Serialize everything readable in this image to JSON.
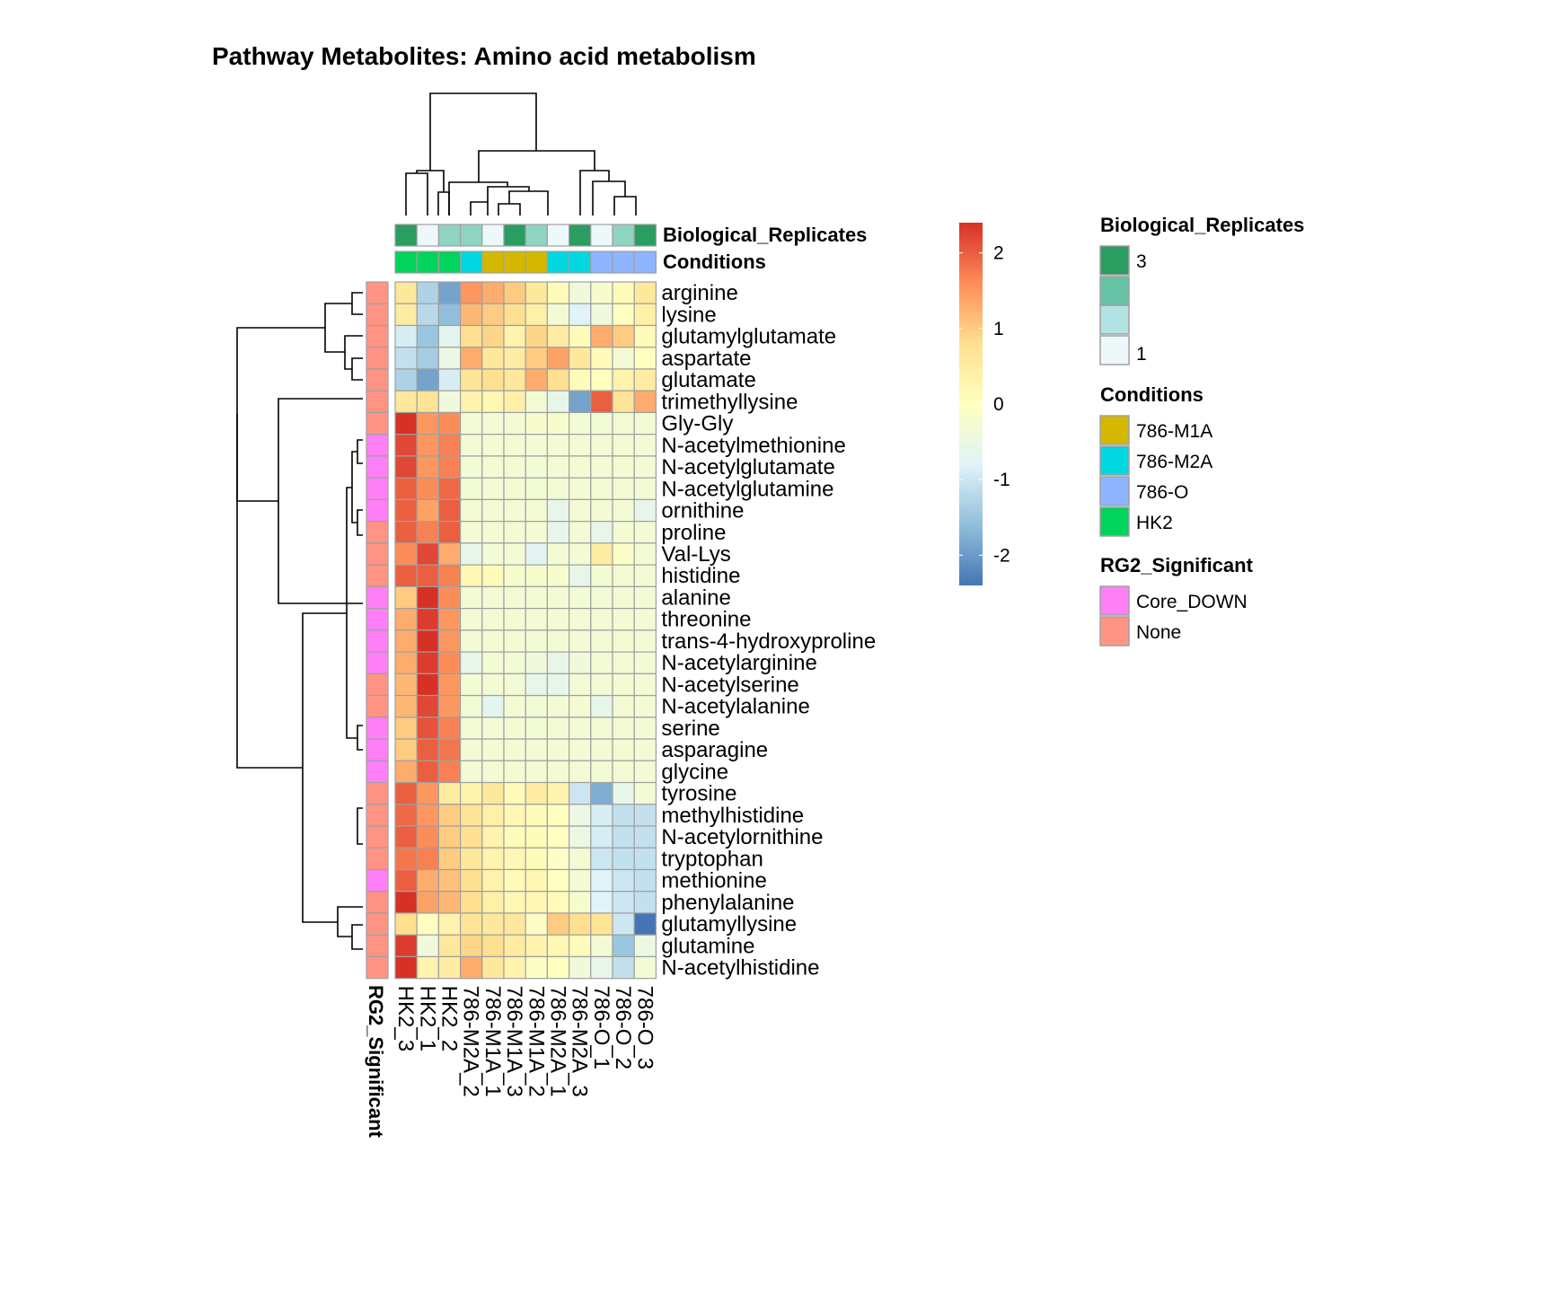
{
  "chart_data": {
    "type": "heatmap",
    "title": "Pathway  Metabolites:  Amino acid metabolism",
    "columns": [
      "HK2_3",
      "HK2_1",
      "HK2_2",
      "786-M2A_2",
      "786-M1A_1",
      "786-M1A_3",
      "786-M1A_2",
      "786-M2A_1",
      "786-M2A_3",
      "786-O_1",
      "786-O_2",
      "786-O_3"
    ],
    "rows": [
      "arginine",
      "lysine",
      "glutamylglutamate",
      "aspartate",
      "glutamate",
      "trimethyllysine",
      "Gly-Gly",
      "N-acetylmethionine",
      "N-acetylglutamate",
      "N-acetylglutamine",
      "ornithine",
      "proline",
      "Val-Lys",
      "histidine",
      "alanine",
      "threonine",
      "trans-4-hydroxyproline",
      "N-acetylarginine",
      "N-acetylserine",
      "N-acetylalanine",
      "serine",
      "asparagine",
      "glycine",
      "tyrosine",
      "methylhistidine",
      "N-acetylornithine",
      "tryptophan",
      "methionine",
      "phenylalanine",
      "glutamyllysine",
      "glutamine",
      "N-acetylhistidine"
    ],
    "values": [
      [
        0.6,
        -1.3,
        -1.9,
        1.5,
        1.3,
        1.0,
        0.6,
        0.1,
        -0.4,
        -0.2,
        0.1,
        0.6
      ],
      [
        0.5,
        -1.2,
        -1.6,
        1.2,
        1.0,
        0.8,
        0.4,
        -0.3,
        -0.8,
        -0.4,
        0.0,
        0.4
      ],
      [
        -0.9,
        -1.5,
        -0.7,
        0.8,
        0.9,
        0.3,
        0.9,
        0.5,
        0.1,
        1.3,
        1.0,
        0.1
      ],
      [
        -1.1,
        -1.4,
        -0.5,
        1.3,
        0.6,
        0.5,
        1.0,
        1.4,
        0.6,
        0.1,
        -0.3,
        0.0
      ],
      [
        -1.3,
        -1.9,
        -0.9,
        0.7,
        0.8,
        0.6,
        1.3,
        0.8,
        0.1,
        0.0,
        0.3,
        0.5
      ],
      [
        0.6,
        0.7,
        -0.4,
        0.3,
        0.2,
        0.4,
        -0.3,
        -0.6,
        -1.9,
        2.0,
        0.7,
        1.3
      ],
      [
        2.4,
        1.5,
        1.6,
        -0.3,
        -0.3,
        -0.3,
        -0.2,
        -0.2,
        -0.3,
        -0.3,
        -0.3,
        -0.3
      ],
      [
        2.2,
        1.5,
        1.7,
        -0.3,
        -0.3,
        -0.3,
        -0.3,
        -0.3,
        -0.3,
        -0.3,
        -0.3,
        -0.3
      ],
      [
        2.2,
        1.5,
        1.7,
        -0.3,
        -0.3,
        -0.3,
        -0.3,
        -0.3,
        -0.3,
        -0.3,
        -0.3,
        -0.3
      ],
      [
        2.0,
        1.6,
        1.9,
        -0.3,
        -0.3,
        -0.3,
        -0.3,
        -0.3,
        -0.3,
        -0.3,
        -0.3,
        -0.3
      ],
      [
        2.0,
        1.4,
        2.0,
        -0.3,
        -0.3,
        -0.3,
        -0.3,
        -0.6,
        -0.3,
        -0.3,
        -0.3,
        -0.6
      ],
      [
        2.0,
        1.7,
        2.0,
        -0.3,
        -0.3,
        -0.3,
        -0.3,
        -0.6,
        -0.3,
        -0.6,
        -0.3,
        -0.3
      ],
      [
        1.6,
        2.2,
        1.3,
        -0.6,
        -0.3,
        -0.3,
        -0.7,
        -0.3,
        -0.3,
        0.5,
        -0.1,
        -0.3
      ],
      [
        2.0,
        2.0,
        1.7,
        0.2,
        0.1,
        -0.2,
        -0.2,
        -0.2,
        -0.6,
        -0.3,
        -0.3,
        -0.3
      ],
      [
        1.0,
        2.4,
        1.6,
        -0.3,
        -0.3,
        -0.3,
        -0.3,
        -0.3,
        -0.3,
        -0.3,
        -0.3,
        -0.3
      ],
      [
        1.3,
        2.3,
        1.5,
        -0.3,
        -0.3,
        -0.3,
        -0.3,
        -0.3,
        -0.3,
        -0.3,
        -0.3,
        -0.3
      ],
      [
        1.3,
        2.4,
        1.5,
        -0.3,
        -0.3,
        -0.3,
        -0.3,
        -0.3,
        -0.3,
        -0.3,
        -0.3,
        -0.3
      ],
      [
        1.3,
        2.3,
        1.6,
        -0.6,
        -0.3,
        -0.3,
        -0.4,
        -0.6,
        -0.4,
        -0.3,
        -0.3,
        -0.3
      ],
      [
        1.2,
        2.4,
        1.5,
        -0.3,
        -0.3,
        -0.3,
        -0.6,
        -0.6,
        -0.3,
        -0.3,
        -0.3,
        -0.3
      ],
      [
        1.2,
        2.2,
        1.5,
        -0.3,
        -0.7,
        -0.3,
        -0.3,
        -0.3,
        -0.3,
        -0.6,
        -0.3,
        -0.3
      ],
      [
        1.0,
        2.1,
        1.7,
        -0.3,
        -0.3,
        -0.3,
        -0.3,
        -0.3,
        -0.3,
        -0.3,
        -0.3,
        -0.3
      ],
      [
        1.0,
        2.0,
        1.8,
        -0.3,
        -0.3,
        -0.3,
        -0.3,
        -0.3,
        -0.3,
        -0.3,
        -0.3,
        -0.3
      ],
      [
        1.3,
        2.0,
        1.7,
        -0.3,
        -0.3,
        -0.3,
        -0.3,
        -0.3,
        -0.3,
        -0.3,
        -0.3,
        -0.3
      ],
      [
        2.0,
        1.5,
        0.5,
        0.3,
        0.6,
        0.1,
        0.5,
        0.3,
        -1.0,
        -1.8,
        -0.6,
        -0.3
      ],
      [
        1.9,
        1.5,
        1.0,
        0.7,
        0.4,
        0.2,
        0.1,
        0.0,
        -0.5,
        -0.9,
        -1.1,
        -1.1
      ],
      [
        2.0,
        1.6,
        1.0,
        0.8,
        0.3,
        0.1,
        0.1,
        0.0,
        -0.5,
        -0.9,
        -1.1,
        -1.1
      ],
      [
        1.8,
        1.7,
        1.0,
        0.6,
        0.3,
        0.2,
        0.1,
        -0.1,
        -0.3,
        -1.0,
        -1.1,
        -1.1
      ],
      [
        2.0,
        1.3,
        1.1,
        0.8,
        0.3,
        0.1,
        0.2,
        0.0,
        -0.3,
        -0.8,
        -1.0,
        -1.1
      ],
      [
        2.4,
        1.4,
        1.2,
        0.8,
        0.4,
        0.2,
        0.2,
        0.1,
        -0.2,
        -0.8,
        -1.0,
        -1.1
      ],
      [
        0.8,
        0.0,
        0.3,
        0.7,
        0.6,
        0.6,
        -0.1,
        1.0,
        0.8,
        0.7,
        -1.0,
        -2.6
      ],
      [
        2.3,
        -0.4,
        0.6,
        0.9,
        0.8,
        0.5,
        0.3,
        0.2,
        0.1,
        -0.3,
        -1.5,
        -0.5
      ],
      [
        2.4,
        0.3,
        0.5,
        1.3,
        0.6,
        0.3,
        -0.1,
        0.0,
        -0.4,
        -0.6,
        -1.1,
        -0.3
      ]
    ],
    "column_annotations": {
      "Biological_Replicates": [
        3,
        1,
        2,
        2,
        1,
        3,
        2,
        1,
        3,
        1,
        2,
        3
      ],
      "Conditions": [
        "HK2",
        "HK2",
        "HK2",
        "786-M2A",
        "786-M1A",
        "786-M1A",
        "786-M1A",
        "786-M2A",
        "786-M2A",
        "786-O",
        "786-O",
        "786-O"
      ]
    },
    "row_annotations": {
      "RG2_Significant": [
        "None",
        "None",
        "None",
        "None",
        "None",
        "None",
        "None",
        "Core_DOWN",
        "Core_DOWN",
        "Core_DOWN",
        "Core_DOWN",
        "None",
        "None",
        "None",
        "Core_DOWN",
        "Core_DOWN",
        "Core_DOWN",
        "Core_DOWN",
        "None",
        "None",
        "Core_DOWN",
        "Core_DOWN",
        "Core_DOWN",
        "None",
        "None",
        "None",
        "None",
        "Core_DOWN",
        "None",
        "None",
        "None",
        "None"
      ]
    },
    "annotation_labels": {
      "Biological_Replicates": "Biological_Replicates",
      "Conditions": "Conditions",
      "RG2_Significant": "RG2_Significant"
    },
    "colorbar": {
      "range": [
        -2.4,
        2.4
      ],
      "ticks": [
        2,
        1,
        0,
        -1,
        -2
      ],
      "tick_labels": [
        "2",
        "1",
        "0",
        "-1",
        "-2"
      ],
      "colors": [
        "#4575b4",
        "#91bfdb",
        "#e0f3f8",
        "#ffffbf",
        "#fee090",
        "#fc8d59",
        "#d73027"
      ]
    },
    "legends": [
      {
        "title": "Biological_Replicates",
        "items": [
          {
            "label": "3",
            "color": "#2a9d60"
          },
          {
            "label": "",
            "color": "#66c2a4"
          },
          {
            "label": "",
            "color": "#b2e2e2"
          },
          {
            "label": "1",
            "color": "#edf8fb"
          }
        ]
      },
      {
        "title": "Conditions",
        "items": [
          {
            "label": "786-M1A",
            "color": "#d4b800"
          },
          {
            "label": "786-M2A",
            "color": "#00d7e0"
          },
          {
            "label": "786-O",
            "color": "#8eb4ff"
          },
          {
            "label": "HK2",
            "color": "#00d45c"
          }
        ]
      },
      {
        "title": "RG2_Significant",
        "items": [
          {
            "label": "Core_DOWN",
            "color": "#ff7ff6"
          },
          {
            "label": "None",
            "color": "#ff9485"
          }
        ]
      }
    ],
    "replicate_colors": {
      "1": "#edf8fb",
      "2": "#8fd3c1",
      "3": "#2a9d60"
    },
    "condition_colors": {
      "786-M1A": "#d4b800",
      "786-M2A": "#00d7e0",
      "786-O": "#8eb4ff",
      "HK2": "#00d45c"
    },
    "significance_colors": {
      "Core_DOWN": "#ff7ff6",
      "None": "#ff9485"
    }
  }
}
